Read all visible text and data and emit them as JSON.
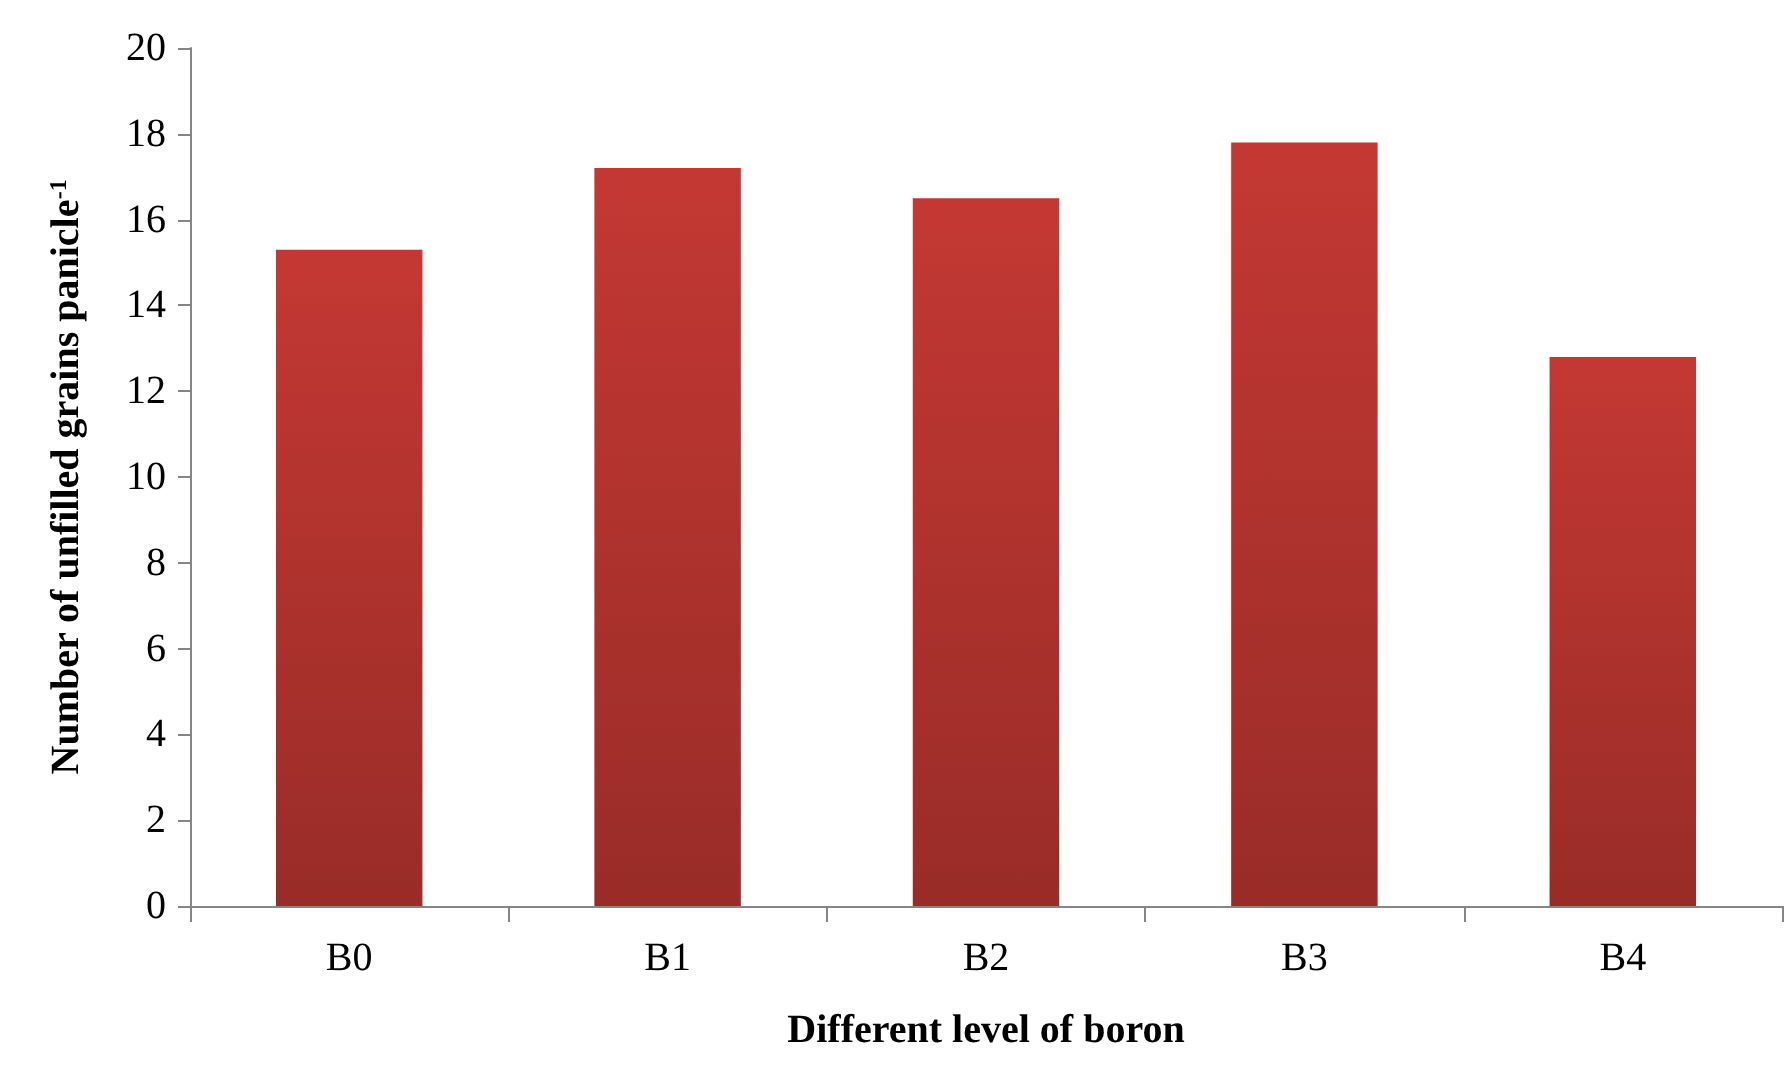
{
  "chart_data": {
    "type": "bar",
    "xlabel": "Different level of boron",
    "ylabel": "Number of unfilled grains panicle$^{-1}$",
    "categories": [
      "B0",
      "B1",
      "B2",
      "B3",
      "B4"
    ],
    "values": [
      15.3,
      17.2,
      16.5,
      17.8,
      12.8
    ],
    "color": "#c43833",
    "ylim": [
      0,
      20
    ],
    "yticks": [
      0,
      2,
      4,
      6,
      8,
      10,
      12,
      14,
      16,
      18,
      20
    ],
    "grid": false
  }
}
